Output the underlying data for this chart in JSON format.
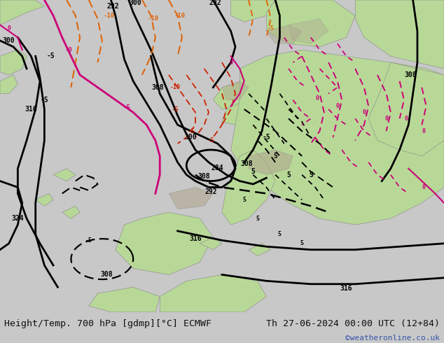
{
  "title_left": "Height/Temp. 700 hPa [gdmp][°C] ECMWF",
  "title_right": "Th 27-06-2024 00:00 UTC (12+84)",
  "watermark": "©weatheronline.co.uk",
  "bg_ocean": "#d8d8d8",
  "bg_land": "#b8d898",
  "bg_terrain": "#b0a890",
  "bottom_bar_color": "#c8c8c8",
  "text_color": "#111111",
  "watermark_color": "#3355aa",
  "font_size_title": 9.5,
  "font_size_watermark": 8,
  "fig_width": 6.34,
  "fig_height": 4.9,
  "dpi": 100,
  "black_contour_lw": 2.0,
  "orange": "#e06000",
  "red_dashed": "#cc2200",
  "pink": "#cc0077"
}
